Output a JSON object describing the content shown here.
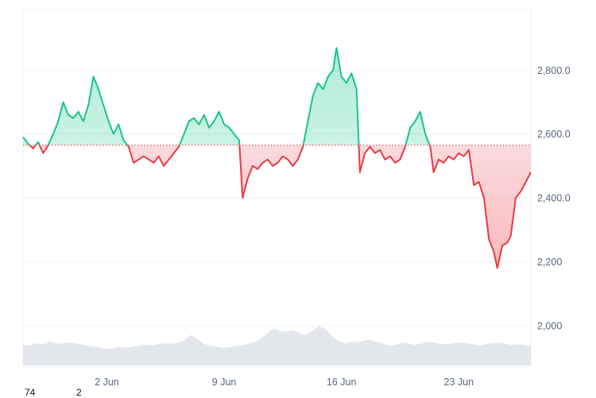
{
  "chart_data": {
    "type": "area",
    "baseline": 2565,
    "ylim": [
      1870,
      2990
    ],
    "yticks": [
      {
        "value": 2000,
        "label": "2,000"
      },
      {
        "value": 2200,
        "label": "2,200"
      },
      {
        "value": 2400,
        "label": "2,400.0"
      },
      {
        "value": 2600,
        "label": "2,600.0"
      },
      {
        "value": 2800,
        "label": "2,800.0"
      }
    ],
    "xticks": [
      {
        "day": 2,
        "label": "2 Jun"
      },
      {
        "day": 9,
        "label": "9 Jun"
      },
      {
        "day": 16,
        "label": "16 Jun"
      },
      {
        "day": 23,
        "label": "23 Jun"
      }
    ],
    "xlim": [
      27.0,
      57.3
    ],
    "x_unit": "day (1 Jun = 1; 31 May = 31 shown as 31-30 offset)",
    "series": [
      {
        "points": [
          [
            27.0,
            2590
          ],
          [
            27.3,
            2570
          ],
          [
            27.6,
            2555
          ],
          [
            27.9,
            2575
          ],
          [
            28.2,
            2540
          ],
          [
            28.5,
            2565
          ],
          [
            28.8,
            2600
          ],
          [
            29.1,
            2640
          ],
          [
            29.4,
            2700
          ],
          [
            29.7,
            2660
          ],
          [
            30.0,
            2650
          ],
          [
            30.3,
            2670
          ],
          [
            30.6,
            2640
          ],
          [
            30.9,
            2690
          ],
          [
            31.2,
            2780
          ],
          [
            31.5,
            2740
          ],
          [
            31.8,
            2690
          ],
          [
            32.1,
            2640
          ],
          [
            32.4,
            2600
          ],
          [
            32.7,
            2630
          ],
          [
            33.0,
            2580
          ],
          [
            33.3,
            2560
          ],
          [
            33.6,
            2510
          ],
          [
            33.9,
            2520
          ],
          [
            34.2,
            2530
          ],
          [
            34.5,
            2520
          ],
          [
            34.8,
            2510
          ],
          [
            35.1,
            2530
          ],
          [
            35.4,
            2500
          ],
          [
            35.7,
            2520
          ],
          [
            36.0,
            2540
          ],
          [
            36.3,
            2560
          ],
          [
            36.6,
            2600
          ],
          [
            36.9,
            2640
          ],
          [
            37.2,
            2650
          ],
          [
            37.5,
            2630
          ],
          [
            37.8,
            2660
          ],
          [
            38.1,
            2620
          ],
          [
            38.4,
            2640
          ],
          [
            38.7,
            2670
          ],
          [
            39.0,
            2630
          ],
          [
            39.3,
            2620
          ],
          [
            39.6,
            2600
          ],
          [
            39.9,
            2580
          ],
          [
            40.1,
            2400
          ],
          [
            40.4,
            2460
          ],
          [
            40.7,
            2500
          ],
          [
            41.0,
            2490
          ],
          [
            41.3,
            2510
          ],
          [
            41.6,
            2520
          ],
          [
            41.9,
            2500
          ],
          [
            42.2,
            2510
          ],
          [
            42.5,
            2530
          ],
          [
            42.8,
            2520
          ],
          [
            43.1,
            2500
          ],
          [
            43.4,
            2520
          ],
          [
            43.7,
            2560
          ],
          [
            44.0,
            2640
          ],
          [
            44.3,
            2720
          ],
          [
            44.6,
            2760
          ],
          [
            44.9,
            2740
          ],
          [
            45.2,
            2780
          ],
          [
            45.5,
            2800
          ],
          [
            45.7,
            2870
          ],
          [
            46.0,
            2780
          ],
          [
            46.3,
            2760
          ],
          [
            46.6,
            2790
          ],
          [
            46.9,
            2740
          ],
          [
            47.1,
            2480
          ],
          [
            47.4,
            2540
          ],
          [
            47.7,
            2560
          ],
          [
            48.0,
            2540
          ],
          [
            48.3,
            2550
          ],
          [
            48.6,
            2520
          ],
          [
            48.9,
            2530
          ],
          [
            49.2,
            2510
          ],
          [
            49.5,
            2520
          ],
          [
            49.8,
            2560
          ],
          [
            50.1,
            2620
          ],
          [
            50.4,
            2640
          ],
          [
            50.7,
            2670
          ],
          [
            51.0,
            2600
          ],
          [
            51.3,
            2560
          ],
          [
            51.5,
            2480
          ],
          [
            51.8,
            2520
          ],
          [
            52.1,
            2510
          ],
          [
            52.4,
            2530
          ],
          [
            52.7,
            2520
          ],
          [
            53.0,
            2540
          ],
          [
            53.3,
            2530
          ],
          [
            53.6,
            2550
          ],
          [
            53.9,
            2440
          ],
          [
            54.2,
            2450
          ],
          [
            54.5,
            2400
          ],
          [
            54.8,
            2270
          ],
          [
            55.1,
            2230
          ],
          [
            55.3,
            2180
          ],
          [
            55.6,
            2250
          ],
          [
            55.9,
            2260
          ],
          [
            56.1,
            2280
          ],
          [
            56.4,
            2400
          ],
          [
            56.7,
            2420
          ],
          [
            57.0,
            2450
          ],
          [
            57.3,
            2480
          ]
        ]
      }
    ],
    "volume": [
      0.42,
      0.4,
      0.45,
      0.43,
      0.48,
      0.46,
      0.44,
      0.47,
      0.45,
      0.43,
      0.4,
      0.38,
      0.36,
      0.34,
      0.35,
      0.37,
      0.36,
      0.38,
      0.4,
      0.42,
      0.41,
      0.43,
      0.45,
      0.44,
      0.46,
      0.5,
      0.62,
      0.55,
      0.45,
      0.4,
      0.38,
      0.36,
      0.37,
      0.39,
      0.41,
      0.44,
      0.48,
      0.55,
      0.65,
      0.75,
      0.7,
      0.68,
      0.72,
      0.66,
      0.62,
      0.7,
      0.8,
      0.75,
      0.6,
      0.5,
      0.45,
      0.48,
      0.46,
      0.5,
      0.52,
      0.48,
      0.44,
      0.4,
      0.42,
      0.46,
      0.44,
      0.42,
      0.45,
      0.48,
      0.46,
      0.44,
      0.43,
      0.45,
      0.47,
      0.45,
      0.43,
      0.41,
      0.43,
      0.45,
      0.46,
      0.44,
      0.42,
      0.43,
      0.41,
      0.4
    ],
    "colors": {
      "up": "#16c784",
      "down": "#ea3943",
      "baseline": "#ea3943",
      "volume": "#e3e6ea",
      "grid": "#eff2f5"
    }
  },
  "footer": {
    "value_a": "74",
    "value_b": "2"
  }
}
